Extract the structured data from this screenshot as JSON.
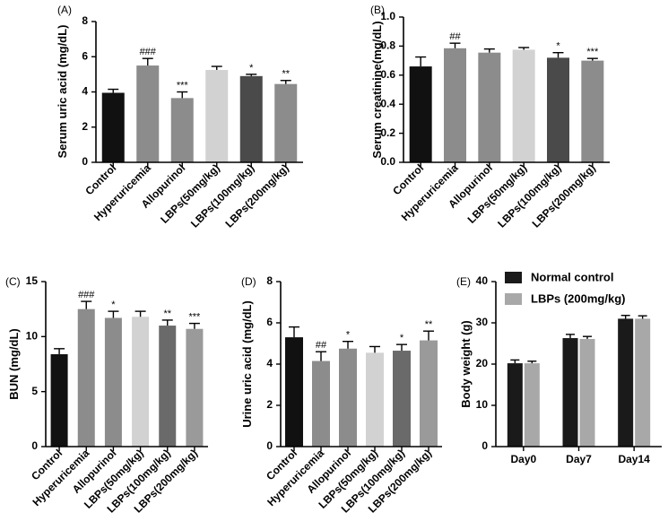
{
  "chart_data": [
    {
      "id": "A",
      "type": "bar",
      "panel_label": "(A)",
      "ylabel": "Serum uric acid (mg/dL)",
      "ylim": [
        0,
        8
      ],
      "yticks": [
        "0",
        "2",
        "4",
        "6",
        "8"
      ],
      "categories": [
        "Control",
        "Hyperuricemia",
        "Allopurinol",
        "LBPs(50mg/kg)",
        "LBPs(100mg/kg)",
        "LBPs(200mg/kg)"
      ],
      "values": [
        3.95,
        5.5,
        3.65,
        5.25,
        4.9,
        4.45
      ],
      "errors": [
        0.2,
        0.4,
        0.35,
        0.2,
        0.1,
        0.2
      ],
      "significance": [
        "",
        "###",
        "***",
        "",
        "*",
        "**"
      ],
      "colors": [
        "#111111",
        "#8c8c8c",
        "#8c8c8c",
        "#d2d2d2",
        "#4a4a4a",
        "#8c8c8c"
      ]
    },
    {
      "id": "B",
      "type": "bar",
      "panel_label": "(B)",
      "ylabel": "Serum creatinine(mg/dL)",
      "ylim": [
        0,
        1.0
      ],
      "yticks": [
        "0.0",
        "0.2",
        "0.4",
        "0.6",
        "0.8",
        "1.0"
      ],
      "categories": [
        "Control",
        "Hyperuricemia",
        "Allopurinol",
        "LBPs(50mg/kg)",
        "LBPs(100mg/kg)",
        "LBPs(200mg/kg)"
      ],
      "values": [
        0.66,
        0.785,
        0.755,
        0.775,
        0.72,
        0.7
      ],
      "errors": [
        0.065,
        0.035,
        0.025,
        0.015,
        0.035,
        0.015
      ],
      "significance": [
        "",
        "##",
        "",
        "",
        "*",
        "***"
      ],
      "colors": [
        "#111111",
        "#8c8c8c",
        "#8c8c8c",
        "#d2d2d2",
        "#4a4a4a",
        "#8c8c8c"
      ]
    },
    {
      "id": "C",
      "type": "bar",
      "panel_label": "(C)",
      "ylabel": "BUN (mg/dL)",
      "ylim": [
        0,
        15
      ],
      "yticks": [
        "0",
        "5",
        "10",
        "15"
      ],
      "categories": [
        "Control",
        "Hyperuricemia",
        "Allopurinol",
        "LBPs(50mg/kg)",
        "LBPs(100mg/kg)",
        "LBPs(200mg/kg)"
      ],
      "values": [
        8.4,
        12.5,
        11.7,
        11.8,
        11.0,
        10.7
      ],
      "errors": [
        0.5,
        0.7,
        0.6,
        0.5,
        0.5,
        0.5
      ],
      "significance": [
        "",
        "###",
        "*",
        "",
        "**",
        "***"
      ],
      "colors": [
        "#111111",
        "#8c8c8c",
        "#8c8c8c",
        "#d2d2d2",
        "#6a6a6a",
        "#9a9a9a"
      ]
    },
    {
      "id": "D",
      "type": "bar",
      "panel_label": "(D)",
      "ylabel": "Urine uric acid (mg/dL)",
      "ylim": [
        0,
        8
      ],
      "yticks": [
        "0",
        "2",
        "4",
        "6",
        "8"
      ],
      "categories": [
        "Control",
        "Hyperuricemia",
        "Allopurinol",
        "LBPs(50mg/kg)",
        "LBPs(100mg/kg)",
        "LBPs(200mg/kg)"
      ],
      "values": [
        5.3,
        4.15,
        4.75,
        4.55,
        4.65,
        5.15
      ],
      "errors": [
        0.5,
        0.45,
        0.35,
        0.3,
        0.3,
        0.45
      ],
      "significance": [
        "",
        "##",
        "*",
        "",
        "*",
        "**"
      ],
      "colors": [
        "#111111",
        "#8c8c8c",
        "#8c8c8c",
        "#d2d2d2",
        "#6a6a6a",
        "#9a9a9a"
      ]
    },
    {
      "id": "E",
      "type": "bar",
      "panel_label": "(E)",
      "ylabel": "Body weight (g)",
      "ylim": [
        0,
        40
      ],
      "yticks": [
        "0",
        "10",
        "20",
        "30",
        "40"
      ],
      "categories": [
        "Day0",
        "Day7",
        "Day14"
      ],
      "legend_placement": "top-left",
      "series": [
        {
          "name": "Normal control",
          "color": "#1a1a1a",
          "values": [
            20.2,
            26.3,
            31.0
          ],
          "errors": [
            0.8,
            0.9,
            0.8
          ]
        },
        {
          "name": "LBPs (200mg/kg)",
          "color": "#a8a8a8",
          "values": [
            20.2,
            26.1,
            31.0
          ],
          "errors": [
            0.5,
            0.6,
            0.7
          ]
        }
      ]
    }
  ]
}
